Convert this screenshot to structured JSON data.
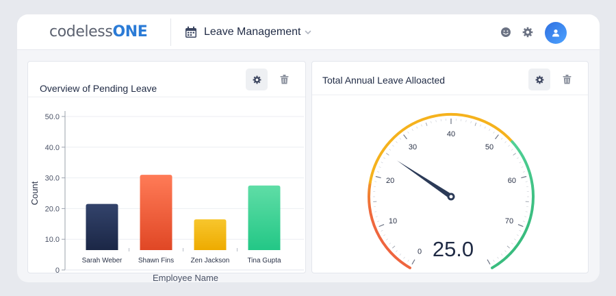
{
  "header": {
    "logo_part1": "codeless",
    "logo_part2": "ONE",
    "app_title": "Leave Management"
  },
  "colors": {
    "accent": "#2b7bd6",
    "bar_navy": "#27365a",
    "bar_red": "#ef5a3a",
    "bar_yellow": "#f2b705",
    "bar_green": "#34d399",
    "gauge_red": "#ec5c42",
    "gauge_yellow": "#f5b21d",
    "gauge_green": "#41c389",
    "needle": "#2b3a57"
  },
  "icons": {
    "calendar": "calendar-icon",
    "chevron": "chevron-down-icon",
    "smile": "smile-icon",
    "settings": "gear-icon",
    "user": "user-icon",
    "delete": "trash-icon"
  },
  "cards": [
    {
      "title": "Overview of Pending Leave"
    },
    {
      "title": "Total Annual Leave Alloacted"
    }
  ],
  "chart_data": [
    {
      "type": "bar",
      "title": "Overview of Pending Leave",
      "xlabel": "Employee Name",
      "ylabel": "Count",
      "categories": [
        "Sarah Weber",
        "Shawn Fins",
        "Zen Jackson",
        "Tina Gupta"
      ],
      "values": [
        21.5,
        31,
        16.5,
        27.5
      ],
      "ylim": [
        0,
        50
      ],
      "yticks": [
        "0",
        "10.0",
        "20.0",
        "30.0",
        "40.0",
        "50.0"
      ],
      "grid": true
    },
    {
      "type": "gauge",
      "title": "Total Annual Leave Alloacted",
      "min": 0,
      "max": 80,
      "value": 25.0,
      "value_label": "25.0",
      "tick_labels": [
        "0",
        "10",
        "20",
        "30",
        "40",
        "50",
        "60",
        "70"
      ]
    }
  ]
}
